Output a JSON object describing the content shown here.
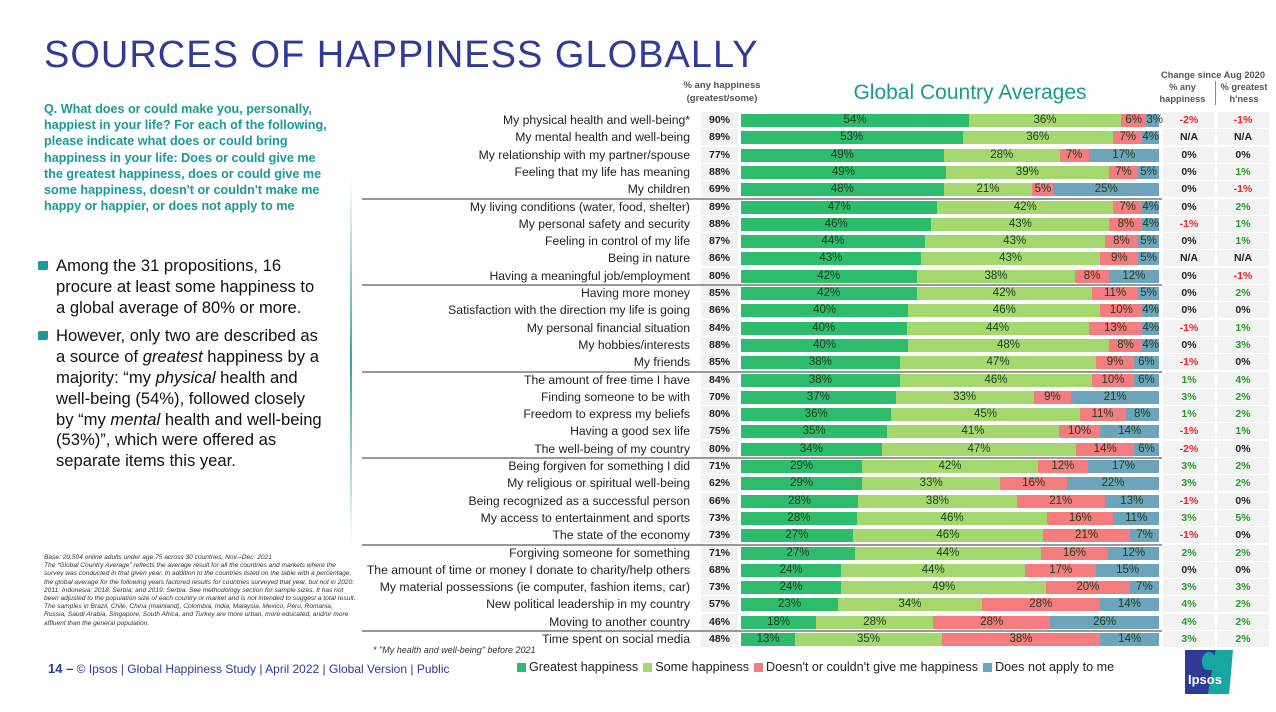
{
  "page": {
    "title": "SOURCES OF HAPPINESS GLOBALLY",
    "question": "Q. What does or could make you, personally, happiest in your life? For each of the following, please indicate what does or could bring happiness in your life: Does or could give me the greatest happiness, does or could give me some happiness, doesn't or couldn't make me happy or happier, or does not apply to me",
    "bullets": [
      {
        "html": "Among the 31 propositions, 16 procure at least some happiness to a global average of 80% or more."
      },
      {
        "html": "However, only two are described as a source of <i>greatest</i> happiness by a majority: “my <i>physical</i> health and well-being (54%), followed closely by “my <i>mental</i> health and well-being (53%)”, which were offered as separate items this year."
      }
    ],
    "footnote": [
      "Base: 20,504 online adults under age 75 across 30 countries, Nov.–Dec. 2021",
      "The “Global Country Average” reflects the average result for all the countries and markets where the survey was conducted in that given year. In addition to the countries listed on the table with a percentage, the global average for the following years factored results for countries surveyed that year, but not in 2020: 2011: Indonesia; 2018: Serbia; and 2019: Serbia. See methodology section for sample sizes. It has not been adjusted to the population size of each country or market and is not intended to suggest a total result.",
      "The samples in Brazil, Chile, China (mainland), Colombia, India, Malaysia, Mexico, Peru, Romania, Russia, Saudi Arabia, Singapore, South Africa, and Turkey are more urban, more educated, and/or more affluent than the general population."
    ],
    "page_number": "14 –",
    "footer_text": "© Ipsos | Global Happiness Study | April 2022 | Global Version | Public",
    "asterisk_note": "* \"My health and well-being\" before 2021",
    "logo_text": "Ipsos"
  },
  "chart_data": {
    "type": "bar",
    "orientation": "horizontal-stacked",
    "title": "Global Country Averages",
    "any_header": [
      "% any happiness",
      "(greatest/some)"
    ],
    "change_header": {
      "top": "Change since Aug 2020",
      "col1": [
        "% any",
        "happiness"
      ],
      "col2": [
        "% greatest",
        "h'ness"
      ]
    },
    "xlim": [
      0,
      100
    ],
    "series_names": [
      "Greatest happiness",
      "Some happiness",
      "Doesn't or couldn't give me happiness",
      "Does not apply to me"
    ],
    "series_colors": [
      "#2dbb6c",
      "#a4d86e",
      "#f47b7e",
      "#6ca4bc"
    ],
    "change_colors": {
      "positive": "#2a9a2a",
      "negative": "#e8242c",
      "neutral": "#222222"
    },
    "group_breaks_after": [
      5,
      10,
      15,
      20,
      25,
      30
    ],
    "rows": [
      {
        "label": "My physical health and well-being*",
        "any": "90%",
        "values": [
          54,
          36,
          6,
          3
        ],
        "chg_any": "-2%",
        "chg_greatest": "-1%"
      },
      {
        "label": "My mental health and well-being",
        "any": "89%",
        "values": [
          53,
          36,
          7,
          4
        ],
        "chg_any": "N/A",
        "chg_greatest": "N/A"
      },
      {
        "label": "My relationship with my partner/spouse",
        "any": "77%",
        "values": [
          49,
          28,
          7,
          17
        ],
        "chg_any": "0%",
        "chg_greatest": "0%"
      },
      {
        "label": "Feeling that my life has meaning",
        "any": "88%",
        "values": [
          49,
          39,
          7,
          5
        ],
        "chg_any": "0%",
        "chg_greatest": "1%"
      },
      {
        "label": "My children",
        "any": "69%",
        "values": [
          48,
          21,
          5,
          25
        ],
        "chg_any": "0%",
        "chg_greatest": "-1%"
      },
      {
        "label": "My living conditions (water, food, shelter)",
        "any": "89%",
        "values": [
          47,
          42,
          7,
          4
        ],
        "chg_any": "0%",
        "chg_greatest": "2%"
      },
      {
        "label": "My personal safety and security",
        "any": "88%",
        "values": [
          46,
          43,
          8,
          4
        ],
        "chg_any": "-1%",
        "chg_greatest": "1%"
      },
      {
        "label": "Feeling in control of my life",
        "any": "87%",
        "values": [
          44,
          43,
          8,
          5
        ],
        "chg_any": "0%",
        "chg_greatest": "1%"
      },
      {
        "label": "Being in nature",
        "any": "86%",
        "values": [
          43,
          43,
          9,
          5
        ],
        "chg_any": "N/A",
        "chg_greatest": "N/A"
      },
      {
        "label": "Having a meaningful job/employment",
        "any": "80%",
        "values": [
          42,
          38,
          8,
          12
        ],
        "chg_any": "0%",
        "chg_greatest": "-1%"
      },
      {
        "label": "Having more money",
        "any": "85%",
        "values": [
          42,
          42,
          11,
          5
        ],
        "chg_any": "0%",
        "chg_greatest": "2%"
      },
      {
        "label": "Satisfaction with the direction my life is going",
        "any": "86%",
        "values": [
          40,
          46,
          10,
          4
        ],
        "chg_any": "0%",
        "chg_greatest": "0%"
      },
      {
        "label": "My personal financial situation",
        "any": "84%",
        "values": [
          40,
          44,
          13,
          4
        ],
        "chg_any": "-1%",
        "chg_greatest": "1%"
      },
      {
        "label": "My hobbies/interests",
        "any": "88%",
        "values": [
          40,
          48,
          8,
          4
        ],
        "chg_any": "0%",
        "chg_greatest": "3%"
      },
      {
        "label": "My friends",
        "any": "85%",
        "values": [
          38,
          47,
          9,
          6
        ],
        "chg_any": "-1%",
        "chg_greatest": "0%"
      },
      {
        "label": "The amount of free time I have",
        "any": "84%",
        "values": [
          38,
          46,
          10,
          6
        ],
        "chg_any": "1%",
        "chg_greatest": "4%"
      },
      {
        "label": "Finding someone to be with",
        "any": "70%",
        "values": [
          37,
          33,
          9,
          21
        ],
        "chg_any": "3%",
        "chg_greatest": "2%"
      },
      {
        "label": "Freedom to express my beliefs",
        "any": "80%",
        "values": [
          36,
          45,
          11,
          8
        ],
        "chg_any": "1%",
        "chg_greatest": "2%"
      },
      {
        "label": "Having a good sex life",
        "any": "75%",
        "values": [
          35,
          41,
          10,
          14
        ],
        "chg_any": "-1%",
        "chg_greatest": "1%"
      },
      {
        "label": "The well-being of my country",
        "any": "80%",
        "values": [
          34,
          47,
          14,
          6
        ],
        "chg_any": "-2%",
        "chg_greatest": "0%"
      },
      {
        "label": "Being forgiven for something I did",
        "any": "71%",
        "values": [
          29,
          42,
          12,
          17
        ],
        "chg_any": "3%",
        "chg_greatest": "2%"
      },
      {
        "label": "My religious or spiritual well-being",
        "any": "62%",
        "values": [
          29,
          33,
          16,
          22
        ],
        "chg_any": "3%",
        "chg_greatest": "2%"
      },
      {
        "label": "Being recognized as a successful person",
        "any": "66%",
        "values": [
          28,
          38,
          21,
          13
        ],
        "chg_any": "-1%",
        "chg_greatest": "0%"
      },
      {
        "label": "My access to entertainment and sports",
        "any": "73%",
        "values": [
          28,
          46,
          16,
          11
        ],
        "chg_any": "3%",
        "chg_greatest": "5%"
      },
      {
        "label": "The state of the economy",
        "any": "73%",
        "values": [
          27,
          46,
          21,
          7
        ],
        "chg_any": "-1%",
        "chg_greatest": "0%"
      },
      {
        "label": "Forgiving someone for something",
        "any": "71%",
        "values": [
          27,
          44,
          16,
          12
        ],
        "chg_any": "2%",
        "chg_greatest": "2%"
      },
      {
        "label": "The amount of time or money I donate to charity/help others",
        "any": "68%",
        "values": [
          24,
          44,
          17,
          15
        ],
        "chg_any": "0%",
        "chg_greatest": "0%"
      },
      {
        "label": "My material possessions (ie computer, fashion items, car)",
        "any": "73%",
        "values": [
          24,
          49,
          20,
          7
        ],
        "chg_any": "3%",
        "chg_greatest": "3%"
      },
      {
        "label": "New political leadership in my country",
        "any": "57%",
        "values": [
          23,
          34,
          28,
          14
        ],
        "chg_any": "4%",
        "chg_greatest": "2%"
      },
      {
        "label": "Moving to another country",
        "any": "46%",
        "values": [
          18,
          28,
          28,
          26
        ],
        "chg_any": "4%",
        "chg_greatest": "2%"
      },
      {
        "label": "Time spent on social media",
        "any": "48%",
        "values": [
          13,
          35,
          38,
          14
        ],
        "chg_any": "3%",
        "chg_greatest": "2%"
      }
    ]
  }
}
